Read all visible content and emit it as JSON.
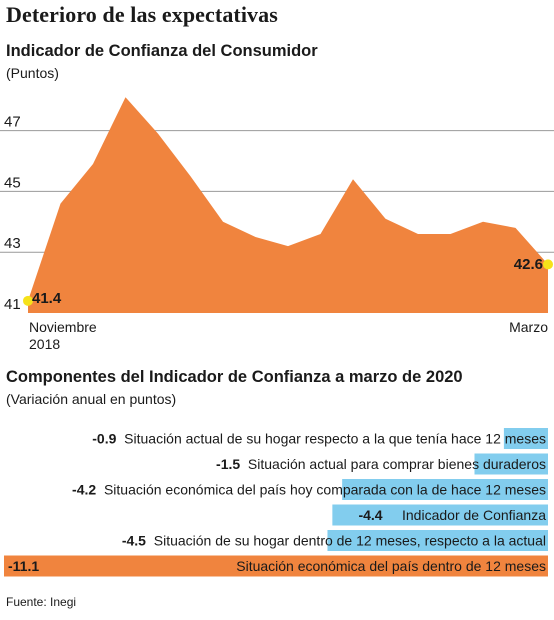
{
  "headline": "Deterioro de las expectativas",
  "source": "Fuente: Inegi",
  "chart_data": [
    {
      "type": "area",
      "title": "Indicador de Confianza del Consumidor",
      "subtitle": "(Puntos)",
      "x_labels": {
        "start": [
          "Noviembre",
          "2018"
        ],
        "end": [
          "Marzo"
        ]
      },
      "y_ticks": [
        41,
        43,
        45,
        47
      ],
      "ylim": [
        41,
        48.5
      ],
      "grid": true,
      "values": [
        41.4,
        44.6,
        45.9,
        48.1,
        46.9,
        45.5,
        44.0,
        43.5,
        43.2,
        43.6,
        45.4,
        44.1,
        43.6,
        43.6,
        44.0,
        43.8,
        42.6
      ],
      "point_labels": {
        "first": "41.4",
        "last": "42.6"
      },
      "colors": {
        "area": "#f0843e",
        "marker": "#f6e21a",
        "grid": "#999999"
      }
    },
    {
      "type": "bar",
      "title": "Componentes del Indicador de Confianza a marzo de 2020",
      "subtitle": "(Variación anual en puntos)",
      "xlim": [
        -11.1,
        0
      ],
      "rows": [
        {
          "value": -0.9,
          "value_label": "-0.9",
          "label": "Situación actual de su hogar respecto a la que tenía hace 12 meses",
          "highlight": false
        },
        {
          "value": -1.5,
          "value_label": "-1.5",
          "label": "Situación actual para comprar bienes duraderos",
          "highlight": false
        },
        {
          "value": -4.2,
          "value_label": "-4.2",
          "label": "Situación económica del país hoy comparada con la de hace 12 meses",
          "highlight": false
        },
        {
          "value": -4.4,
          "value_label": "-4.4",
          "label": "Indicador de Confianza",
          "highlight": false
        },
        {
          "value": -4.5,
          "value_label": "-4.5",
          "label": "Situación de su hogar dentro de 12 meses, respecto a la actual",
          "highlight": false
        },
        {
          "value": -11.1,
          "value_label": "-11.1",
          "label": "Situación económica del país dentro de 12 meses",
          "highlight": true
        }
      ],
      "colors": {
        "bar": "#82cdee",
        "highlight": "#f0843e"
      }
    }
  ]
}
